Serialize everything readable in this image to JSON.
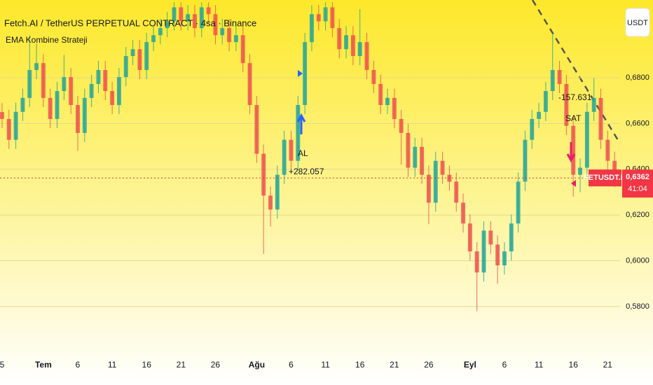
{
  "header": {
    "title": "Fetch.AI / TetherUS PERPETUAL CONTRACT · 4sa · Binance",
    "indicator": "EMA Kombine Strateji",
    "currency_button": "USDT"
  },
  "chart_data": {
    "type": "candlestick",
    "up_color": "#26a69a",
    "down_color": "#ef5350",
    "grid": true,
    "x": [
      0,
      1,
      2,
      3,
      4,
      5,
      6,
      7,
      8,
      9,
      10,
      11,
      12,
      13,
      14,
      15,
      16,
      17,
      18,
      19,
      20,
      21,
      22,
      23,
      24,
      25,
      26,
      27,
      28,
      29,
      30,
      31,
      32,
      33,
      34,
      35,
      36,
      37,
      38,
      39,
      40,
      41,
      42,
      43,
      44,
      45,
      46,
      47,
      48,
      49,
      50,
      51,
      52,
      53,
      54,
      55,
      56,
      57,
      58,
      59,
      60,
      61,
      62,
      63,
      64,
      65,
      66,
      67,
      68,
      69,
      70,
      71,
      72,
      73,
      74,
      75,
      76,
      77,
      78,
      79,
      80,
      81,
      82,
      83,
      84,
      85,
      86,
      87,
      88,
      89
    ],
    "open": [
      0.665,
      0.662,
      0.6529,
      0.6651,
      0.6712,
      0.6834,
      0.6864,
      0.6712,
      0.662,
      0.6742,
      0.6803,
      0.6681,
      0.6559,
      0.6712,
      0.6773,
      0.6834,
      0.6742,
      0.6681,
      0.6803,
      0.6895,
      0.6925,
      0.6834,
      0.6956,
      0.6986,
      0.7017,
      0.7047,
      0.7108,
      0.7047,
      0.7078,
      0.7017,
      0.7108,
      0.7078,
      0.6986,
      0.7017,
      0.6956,
      0.6986,
      0.6864,
      0.6681,
      0.6468,
      0.6285,
      0.6224,
      0.6376,
      0.6529,
      0.6437,
      0.6681,
      0.6956,
      0.7078,
      0.7047,
      0.7108,
      0.7017,
      0.6925,
      0.6986,
      0.6895,
      0.6956,
      0.6834,
      0.6773,
      0.6681,
      0.6712,
      0.662,
      0.6559,
      0.6407,
      0.6498,
      0.6376,
      0.6254,
      0.6437,
      0.6376,
      0.6346,
      0.6254,
      0.6163,
      0.6041,
      0.5949,
      0.6132,
      0.6071,
      0.598,
      0.6041,
      0.6163,
      0.6346,
      0.6529,
      0.662,
      0.6651,
      0.6742,
      0.6834,
      0.6773,
      0.659,
      0.6376,
      0.6407,
      0.6651,
      0.6712,
      0.6529,
      0.6437
    ],
    "high": [
      0.669,
      0.666,
      0.6691,
      0.6752,
      0.6986,
      0.695,
      0.6904,
      0.6752,
      0.6782,
      0.69,
      0.6843,
      0.6721,
      0.6752,
      0.6813,
      0.6874,
      0.6874,
      0.6782,
      0.6843,
      0.6935,
      0.6965,
      0.6965,
      0.6996,
      0.7026,
      0.7057,
      0.7087,
      0.713,
      0.713,
      0.7118,
      0.7118,
      0.713,
      0.713,
      0.7118,
      0.7057,
      0.7057,
      0.7026,
      0.7026,
      0.6904,
      0.6721,
      0.6508,
      0.6325,
      0.6416,
      0.6569,
      0.6569,
      0.6721,
      0.6996,
      0.7118,
      0.7118,
      0.713,
      0.713,
      0.7057,
      0.7026,
      0.7026,
      0.71,
      0.6996,
      0.6874,
      0.6813,
      0.6752,
      0.6752,
      0.666,
      0.6599,
      0.6538,
      0.6538,
      0.6416,
      0.6477,
      0.6477,
      0.6416,
      0.6386,
      0.6294,
      0.6203,
      0.6081,
      0.6172,
      0.6172,
      0.6111,
      0.6081,
      0.6203,
      0.6386,
      0.6569,
      0.666,
      0.6691,
      0.6782,
      0.6996,
      0.6874,
      0.6813,
      0.663,
      0.6447,
      0.6691,
      0.68,
      0.6752,
      0.6569,
      0.6477
    ],
    "low": [
      0.658,
      0.6489,
      0.6489,
      0.6611,
      0.6672,
      0.6794,
      0.6672,
      0.658,
      0.658,
      0.6702,
      0.6641,
      0.648,
      0.6519,
      0.6672,
      0.6733,
      0.6702,
      0.6641,
      0.6641,
      0.6763,
      0.6855,
      0.6794,
      0.6794,
      0.6916,
      0.6946,
      0.6977,
      0.7007,
      0.7007,
      0.7007,
      0.6977,
      0.6977,
      0.7038,
      0.6946,
      0.6946,
      0.6916,
      0.6916,
      0.6824,
      0.6641,
      0.6428,
      0.603,
      0.615,
      0.6184,
      0.6336,
      0.6397,
      0.6397,
      0.6641,
      0.6916,
      0.7007,
      0.7007,
      0.6977,
      0.6885,
      0.6885,
      0.6855,
      0.6855,
      0.6794,
      0.6733,
      0.6641,
      0.6641,
      0.658,
      0.642,
      0.6367,
      0.6367,
      0.6336,
      0.616,
      0.6214,
      0.6336,
      0.6306,
      0.6214,
      0.6123,
      0.6001,
      0.578,
      0.5909,
      0.6031,
      0.59,
      0.594,
      0.6001,
      0.6123,
      0.6306,
      0.6489,
      0.658,
      0.6611,
      0.6702,
      0.6733,
      0.655,
      0.628,
      0.63,
      0.6367,
      0.6611,
      0.6489,
      0.6397,
      0.6322
    ],
    "close": [
      0.662,
      0.6529,
      0.6651,
      0.6712,
      0.6834,
      0.6864,
      0.6712,
      0.662,
      0.6742,
      0.6803,
      0.6681,
      0.6559,
      0.6712,
      0.6773,
      0.6834,
      0.6742,
      0.6681,
      0.6803,
      0.6895,
      0.6925,
      0.6834,
      0.6956,
      0.6986,
      0.7017,
      0.7047,
      0.7108,
      0.7047,
      0.7078,
      0.7017,
      0.7108,
      0.7078,
      0.6986,
      0.7017,
      0.6956,
      0.6986,
      0.6864,
      0.6681,
      0.6468,
      0.6285,
      0.6224,
      0.6376,
      0.6529,
      0.6437,
      0.6681,
      0.6956,
      0.7078,
      0.7047,
      0.7108,
      0.7017,
      0.6925,
      0.6986,
      0.6895,
      0.6956,
      0.6834,
      0.6773,
      0.6681,
      0.6712,
      0.662,
      0.6559,
      0.6407,
      0.6498,
      0.6376,
      0.6254,
      0.6437,
      0.6376,
      0.6346,
      0.6254,
      0.6163,
      0.6041,
      0.5949,
      0.6132,
      0.6071,
      0.598,
      0.6041,
      0.6163,
      0.6346,
      0.6529,
      0.662,
      0.6651,
      0.6742,
      0.6834,
      0.6773,
      0.659,
      0.6376,
      0.6407,
      0.6651,
      0.6712,
      0.6529,
      0.6437,
      0.6362
    ],
    "xlim": [
      -0.3,
      89.8
    ],
    "xticks": [
      {
        "value": 0,
        "label": "5"
      },
      {
        "value": 6,
        "label": "Tem"
      },
      {
        "value": 11,
        "label": "6"
      },
      {
        "value": 16,
        "label": "11"
      },
      {
        "value": 21,
        "label": "16"
      },
      {
        "value": 26,
        "label": "21"
      },
      {
        "value": 31,
        "label": "26"
      },
      {
        "value": 37,
        "label": "Ağu"
      },
      {
        "value": 42,
        "label": "6"
      },
      {
        "value": 47,
        "label": "11"
      },
      {
        "value": 52,
        "label": "16"
      },
      {
        "value": 57,
        "label": "21"
      },
      {
        "value": 62,
        "label": "26"
      },
      {
        "value": 68,
        "label": "Eyl"
      },
      {
        "value": 73,
        "label": "6"
      },
      {
        "value": 78,
        "label": "11"
      },
      {
        "value": 83,
        "label": "16"
      },
      {
        "value": 88,
        "label": "21"
      }
    ],
    "ylim": [
      0.561,
      0.714
    ],
    "yticks": [
      {
        "value": 0.58,
        "label": "0,5800"
      },
      {
        "value": 0.6,
        "label": "0,6000"
      },
      {
        "value": 0.62,
        "label": "0,6200"
      },
      {
        "value": 0.64,
        "label": "0,6400"
      },
      {
        "value": 0.66,
        "label": "0,6600"
      },
      {
        "value": 0.68,
        "label": "0,6800"
      }
    ],
    "last_price": {
      "value": 0.6362,
      "label": "0,6362"
    },
    "countdown": "41:04",
    "symbol_tag": "FETUSDT.P",
    "annotations": {
      "buy_label": "AL",
      "buy_profit": "+282.057",
      "sell_profit": "-157.631",
      "sell_label": "SAT"
    }
  }
}
